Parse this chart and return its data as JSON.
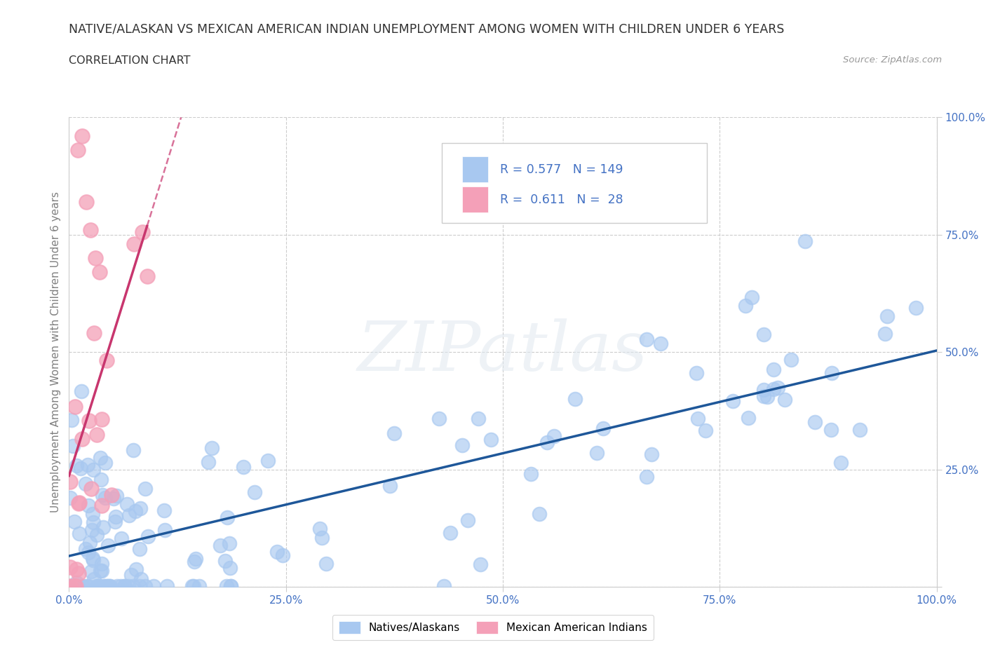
{
  "title": "NATIVE/ALASKAN VS MEXICAN AMERICAN INDIAN UNEMPLOYMENT AMONG WOMEN WITH CHILDREN UNDER 6 YEARS",
  "subtitle": "CORRELATION CHART",
  "source": "Source: ZipAtlas.com",
  "ylabel": "Unemployment Among Women with Children Under 6 years",
  "blue_color": "#A8C8F0",
  "pink_color": "#F4A0B8",
  "blue_line_color": "#1E5799",
  "pink_line_color": "#C8366E",
  "blue_R": 0.577,
  "blue_N": 149,
  "pink_R": 0.611,
  "pink_N": 28,
  "watermark": "ZIPatlas",
  "legend_label_blue": "Natives/Alaskans",
  "legend_label_pink": "Mexican American Indians",
  "title_color": "#333333",
  "axis_label_color": "#4472C4",
  "ylabel_color": "#808080"
}
